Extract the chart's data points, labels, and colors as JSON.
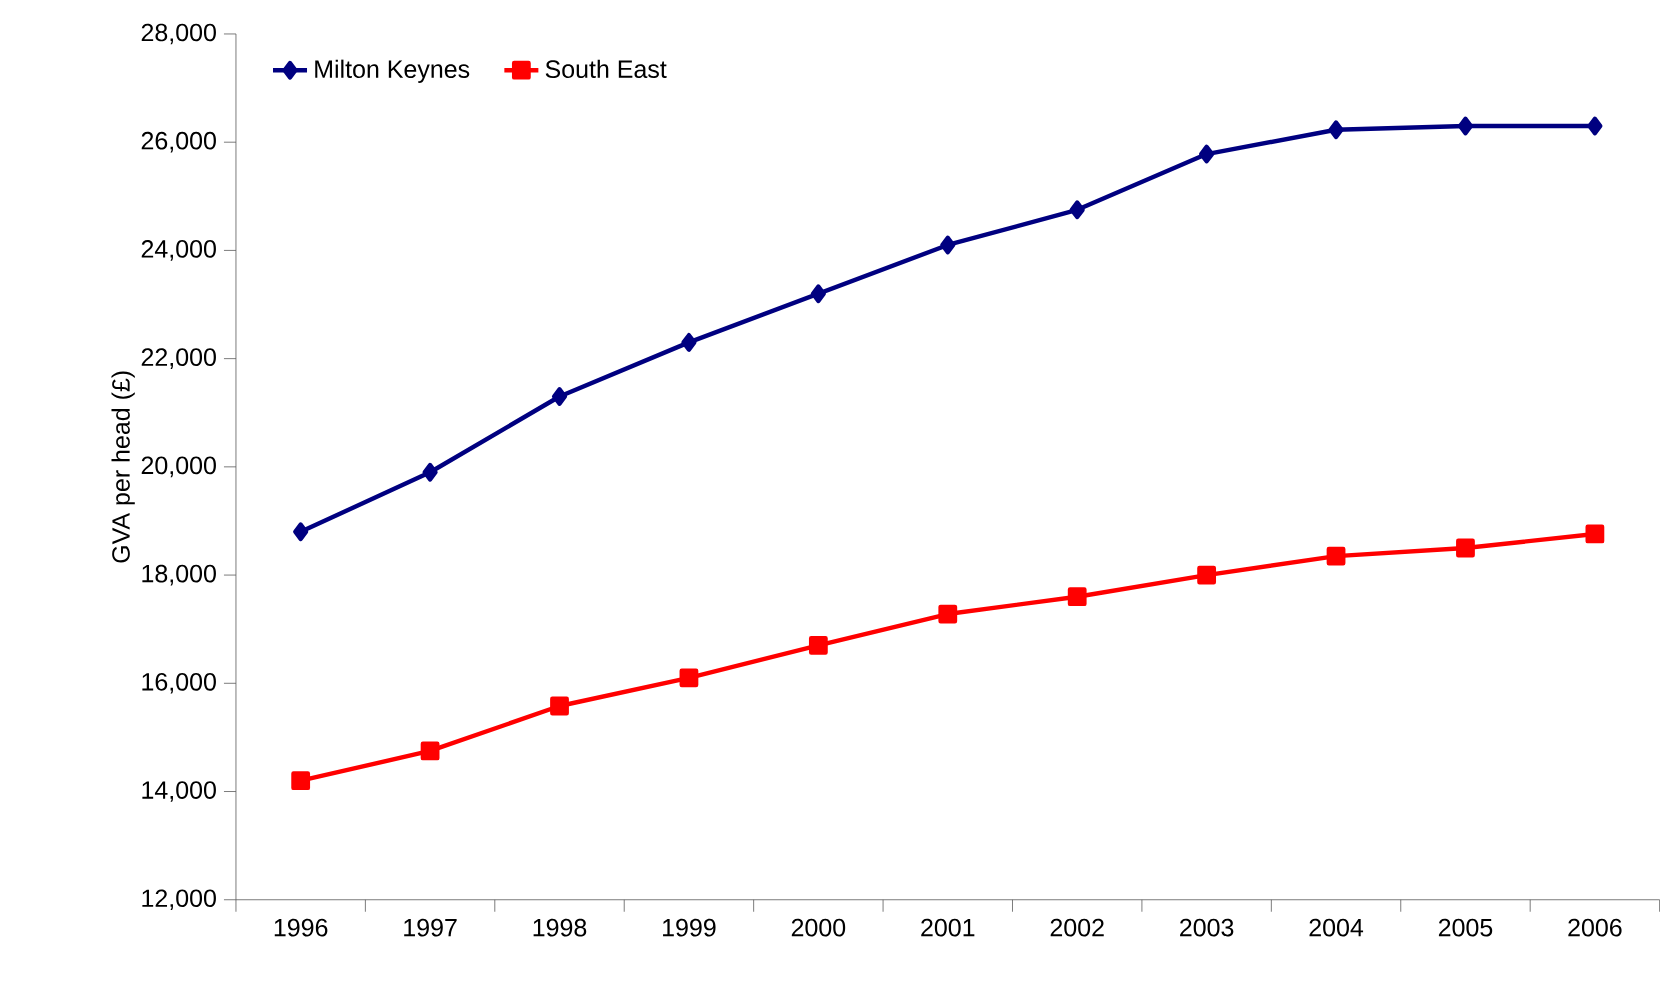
{
  "chart_data": {
    "type": "line",
    "ylabel": "GVA per head (£)",
    "categories": [
      "1996",
      "1997",
      "1998",
      "1999",
      "2000",
      "2001",
      "2002",
      "2003",
      "2004",
      "2005",
      "2006"
    ],
    "series": [
      {
        "name": "Milton Keynes",
        "color": "#000080",
        "marker": "diamond",
        "values": [
          18800,
          19900,
          21300,
          22300,
          23200,
          24100,
          24750,
          25780,
          26230,
          26300,
          26300
        ]
      },
      {
        "name": "South East",
        "color": "#ff0000",
        "marker": "square",
        "values": [
          14200,
          14750,
          15580,
          16100,
          16700,
          17280,
          17600,
          18000,
          18350,
          18500,
          18760
        ]
      }
    ],
    "ylim": [
      12000,
      28000
    ],
    "yticks": [
      {
        "value": 12000,
        "label": "12,000"
      },
      {
        "value": 14000,
        "label": "14,000"
      },
      {
        "value": 16000,
        "label": "16,000"
      },
      {
        "value": 18000,
        "label": "18,000"
      },
      {
        "value": 20000,
        "label": "20,000"
      },
      {
        "value": 22000,
        "label": "22,000"
      },
      {
        "value": 24000,
        "label": "24,000"
      },
      {
        "value": 26000,
        "label": "26,000"
      },
      {
        "value": 28000,
        "label": "28,000"
      }
    ],
    "grid": false,
    "legend": "top left",
    "line_style": "solid"
  }
}
